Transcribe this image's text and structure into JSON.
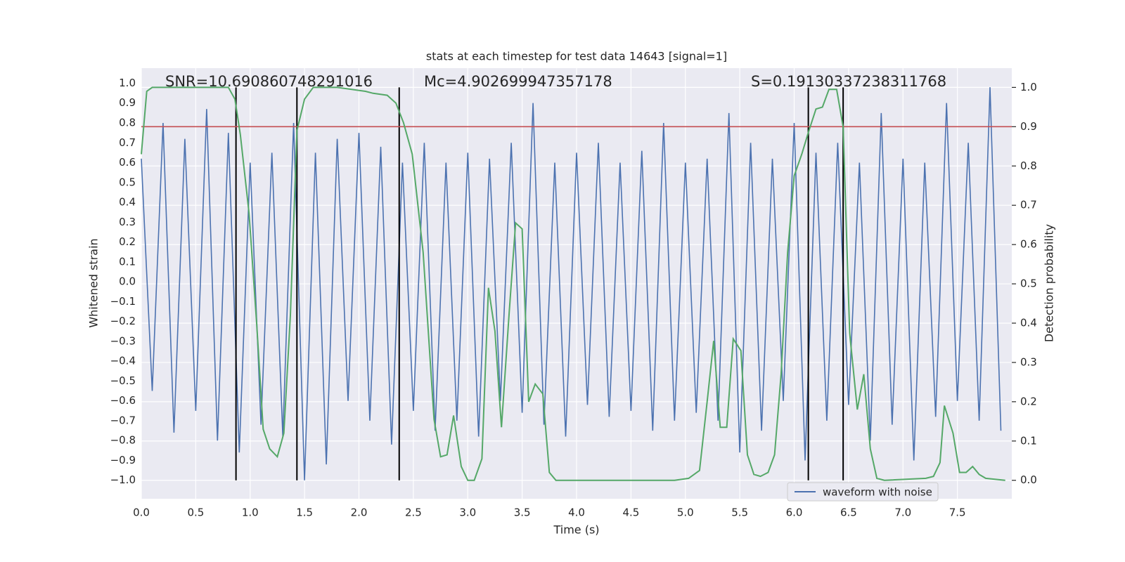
{
  "chart_data": {
    "type": "line",
    "title": "stats at each timestep for test data 14643 [signal=1]",
    "xlabel": "Time (s)",
    "ylabel": "Whitened strain",
    "y2label": "Detection probability",
    "annotations": [
      "SNR=10.690860748291016",
      "Mc=4.902699947357178",
      "S=0.19130337238311768"
    ],
    "xlim": [
      0,
      8.0
    ],
    "ylim": [
      -1.093,
      1.076
    ],
    "y2lim": [
      -0.047,
      1.049
    ],
    "xticks": [
      {
        "value": 0,
        "label": "0.0"
      },
      0.5,
      {
        "value": 1,
        "label": "1.0"
      },
      1.5,
      {
        "value": 2,
        "label": "2.0"
      },
      2.5,
      {
        "value": 3,
        "label": "3.0"
      },
      3.5,
      {
        "value": 4,
        "label": "4.0"
      },
      4.5,
      {
        "value": 5,
        "label": "5.0"
      },
      5.5,
      {
        "value": 6,
        "label": "6.0"
      },
      6.5,
      {
        "value": 7,
        "label": "7.0"
      },
      7.5
    ],
    "yticks": [
      {
        "value": -1,
        "label": "−1.0"
      },
      {
        "value": -0.9,
        "label": "−0.9"
      },
      {
        "value": -0.8,
        "label": "−0.8"
      },
      {
        "value": -0.7,
        "label": "−0.7"
      },
      {
        "value": -0.6,
        "label": "−0.6"
      },
      {
        "value": -0.5,
        "label": "−0.5"
      },
      {
        "value": -0.4,
        "label": "−0.4"
      },
      {
        "value": -0.3,
        "label": "−0.3"
      },
      {
        "value": -0.2,
        "label": "−0.2"
      },
      {
        "value": -0.1,
        "label": "−0.1"
      },
      {
        "value": 0,
        "label": "0.0"
      },
      0.1,
      0.2,
      0.3,
      0.4,
      0.5,
      0.6,
      0.7,
      0.8,
      0.9,
      {
        "value": 1,
        "label": "1.0"
      }
    ],
    "y2ticks": [
      {
        "value": 0,
        "label": "0.0"
      },
      0.1,
      0.2,
      0.3,
      0.4,
      0.5,
      0.6,
      0.7,
      0.8,
      0.9,
      {
        "value": 1,
        "label": "1.0"
      }
    ],
    "grid": true,
    "legend": "lower right",
    "vlines": [
      0.87,
      1.43,
      2.37,
      6.13,
      6.45
    ],
    "vline_color": "#000000",
    "hlines": [
      {
        "value": 0.9,
        "axis": "y2",
        "color": "#c44e52"
      }
    ],
    "series": [
      {
        "name": "waveform with noise",
        "color": "#4c72b0",
        "x": [
          0,
          0.1,
          0.2,
          0.3,
          0.4,
          0.5,
          0.6,
          0.7,
          0.8,
          0.9,
          1,
          1.1,
          1.2,
          1.3,
          1.4,
          1.5,
          1.6,
          1.7,
          1.8,
          1.9,
          2,
          2.1,
          2.2,
          2.3,
          2.4,
          2.5,
          2.6,
          2.7,
          2.8,
          2.9,
          3,
          3.1,
          3.2,
          3.3,
          3.4,
          3.5,
          3.6,
          3.7,
          3.8,
          3.9,
          4,
          4.1,
          4.2,
          4.3,
          4.4,
          4.5,
          4.6,
          4.7,
          4.8,
          4.9,
          5,
          5.1,
          5.2,
          5.3,
          5.4,
          5.5,
          5.6,
          5.7,
          5.8,
          5.9,
          6,
          6.1,
          6.2,
          6.3,
          6.4,
          6.5,
          6.6,
          6.7,
          6.8,
          6.9,
          7,
          7.1,
          7.2,
          7.3,
          7.4,
          7.5,
          7.6,
          7.7,
          7.8,
          7.9
        ],
        "values": [
          0.62,
          -0.55,
          0.8,
          -0.76,
          0.72,
          -0.65,
          0.87,
          -0.8,
          0.75,
          -0.86,
          0.6,
          -0.72,
          0.65,
          -0.78,
          0.8,
          -1.0,
          0.65,
          -0.92,
          0.72,
          -0.6,
          0.75,
          -0.7,
          0.68,
          -0.82,
          0.6,
          -0.65,
          0.7,
          -0.75,
          0.6,
          -0.7,
          0.65,
          -0.78,
          0.62,
          -0.6,
          0.7,
          -0.66,
          0.9,
          -0.72,
          0.6,
          -0.78,
          0.65,
          -0.62,
          0.7,
          -0.68,
          0.6,
          -0.65,
          0.66,
          -0.75,
          0.8,
          -0.7,
          0.6,
          -0.66,
          0.62,
          -0.7,
          0.85,
          -0.86,
          0.7,
          -0.75,
          0.62,
          -0.6,
          0.8,
          -0.9,
          0.65,
          -0.7,
          0.7,
          -0.62,
          0.6,
          -0.8,
          0.85,
          -0.72,
          0.62,
          -0.9,
          0.6,
          -0.68,
          0.9,
          -0.6,
          0.7,
          -0.7,
          0.98,
          -0.75
        ]
      },
      {
        "color": "#55a868",
        "axis": "y2",
        "x": [
          0,
          0.05,
          0.1,
          0.8,
          0.86,
          0.91,
          0.99,
          1.06,
          1.12,
          1.18,
          1.25,
          1.31,
          1.37,
          1.43,
          1.5,
          1.58,
          1.8,
          2.06,
          2.13,
          2.26,
          2.34,
          2.41,
          2.49,
          2.59,
          2.69,
          2.75,
          2.81,
          2.87,
          2.94,
          3.0,
          3.06,
          3.13,
          3.19,
          3.25,
          3.31,
          3.38,
          3.44,
          3.5,
          3.56,
          3.62,
          3.69,
          3.75,
          3.81,
          4.9,
          5.03,
          5.13,
          5.2,
          5.26,
          5.32,
          5.38,
          5.44,
          5.51,
          5.57,
          5.63,
          5.69,
          5.76,
          5.82,
          5.88,
          5.94,
          6.0,
          6.07,
          6.13,
          6.2,
          6.26,
          6.32,
          6.39,
          6.45,
          6.51,
          6.58,
          6.64,
          6.7,
          6.76,
          6.83,
          7.21,
          7.28,
          7.34,
          7.38,
          7.46,
          7.52,
          7.58,
          7.64,
          7.7,
          7.76,
          7.94
        ],
        "values": [
          0.83,
          0.99,
          1.0,
          1.0,
          0.97,
          0.88,
          0.68,
          0.4,
          0.13,
          0.08,
          0.06,
          0.12,
          0.42,
          0.89,
          0.97,
          1.0,
          1.0,
          0.99,
          0.985,
          0.98,
          0.96,
          0.91,
          0.83,
          0.58,
          0.155,
          0.06,
          0.065,
          0.165,
          0.035,
          0.0,
          0.0,
          0.055,
          0.49,
          0.38,
          0.135,
          0.425,
          0.655,
          0.64,
          0.2,
          0.245,
          0.22,
          0.02,
          0.0,
          0.0,
          0.005,
          0.025,
          0.2,
          0.355,
          0.135,
          0.135,
          0.36,
          0.33,
          0.065,
          0.015,
          0.01,
          0.02,
          0.065,
          0.27,
          0.58,
          0.775,
          0.83,
          0.885,
          0.945,
          0.95,
          0.995,
          0.995,
          0.9,
          0.375,
          0.18,
          0.27,
          0.08,
          0.005,
          0.0,
          0.005,
          0.01,
          0.045,
          0.19,
          0.12,
          0.02,
          0.02,
          0.035,
          0.015,
          0.005,
          0.0
        ]
      }
    ]
  }
}
